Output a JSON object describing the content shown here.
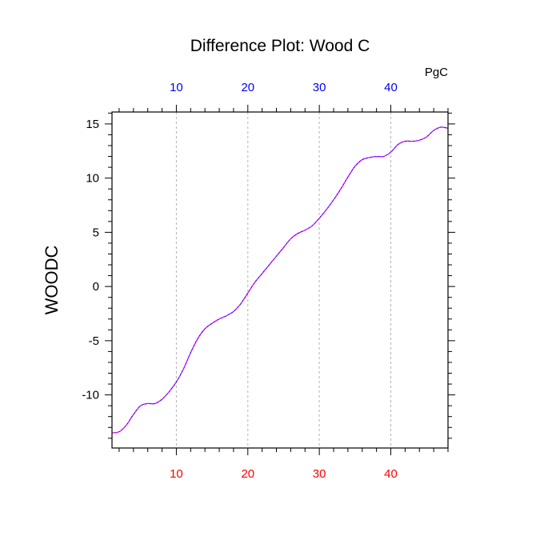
{
  "chart_data": {
    "type": "line",
    "title": "Difference Plot: Wood C",
    "units_label": "PgC",
    "ylabel": "WOODC",
    "xlim": [
      1,
      48
    ],
    "ylim": [
      -14.9,
      16.1
    ],
    "x_ticks": [
      10,
      20,
      30,
      40
    ],
    "y_ticks": [
      -10,
      -5,
      0,
      5,
      10,
      15
    ],
    "x_tick_labels": [
      "10",
      "20",
      "30",
      "40"
    ],
    "y_tick_labels": [
      "-10",
      "-5",
      "0",
      "5",
      "10",
      "15"
    ],
    "x_minor_step": 2,
    "y_minor_step": 1,
    "grid": "x-dashed",
    "colors": {
      "bottom_ticks": "#ff0000",
      "top_ticks": "#0000ff",
      "series_a": "#0000ff",
      "series_b": "#ff00ff",
      "grid": "#b4b4b4"
    },
    "series": [
      {
        "style": "solid",
        "x": [
          1,
          2,
          3,
          4,
          5,
          6,
          7,
          8,
          9,
          10,
          11,
          12,
          13,
          14,
          15,
          16,
          17,
          18,
          19,
          20,
          21,
          22,
          23,
          24,
          25,
          26,
          27,
          28,
          29,
          30,
          31,
          32,
          33,
          34,
          35,
          36,
          37,
          38,
          39,
          40,
          41,
          42,
          43,
          44,
          45,
          46,
          47,
          48
        ],
        "values": [
          -13.5,
          -13.4,
          -12.8,
          -11.8,
          -11.0,
          -10.8,
          -10.8,
          -10.4,
          -9.7,
          -8.8,
          -7.6,
          -6.1,
          -4.8,
          -3.9,
          -3.4,
          -3.0,
          -2.7,
          -2.3,
          -1.6,
          -0.6,
          0.4,
          1.2,
          2.0,
          2.8,
          3.6,
          4.4,
          4.9,
          5.2,
          5.6,
          6.3,
          7.1,
          8.0,
          9.0,
          10.1,
          11.1,
          11.7,
          11.9,
          12.0,
          12.0,
          12.4,
          13.1,
          13.4,
          13.4,
          13.5,
          13.8,
          14.4,
          14.7,
          14.6
        ]
      },
      {
        "style": "dashed",
        "x": [
          1,
          2,
          3,
          4,
          5,
          6,
          7,
          8,
          9,
          10,
          11,
          12,
          13,
          14,
          15,
          16,
          17,
          18,
          19,
          20,
          21,
          22,
          23,
          24,
          25,
          26,
          27,
          28,
          29,
          30,
          31,
          32,
          33,
          34,
          35,
          36,
          37,
          38,
          39,
          40,
          41,
          42,
          43,
          44,
          45,
          46,
          47,
          48
        ],
        "values": [
          -13.5,
          -13.4,
          -12.8,
          -11.8,
          -11.0,
          -10.8,
          -10.8,
          -10.4,
          -9.7,
          -8.8,
          -7.6,
          -6.1,
          -4.8,
          -3.9,
          -3.4,
          -3.0,
          -2.7,
          -2.3,
          -1.6,
          -0.6,
          0.4,
          1.2,
          2.0,
          2.8,
          3.6,
          4.4,
          4.9,
          5.2,
          5.6,
          6.3,
          7.1,
          8.0,
          9.0,
          10.1,
          11.1,
          11.7,
          11.9,
          12.0,
          12.0,
          12.4,
          13.1,
          13.4,
          13.4,
          13.5,
          13.8,
          14.4,
          14.7,
          14.6
        ]
      }
    ]
  }
}
